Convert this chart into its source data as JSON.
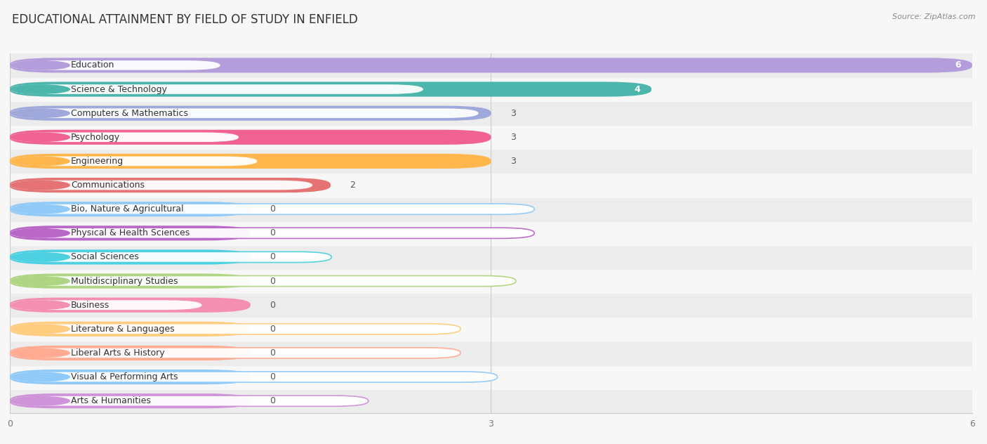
{
  "title": "EDUCATIONAL ATTAINMENT BY FIELD OF STUDY IN ENFIELD",
  "source": "Source: ZipAtlas.com",
  "categories": [
    "Education",
    "Science & Technology",
    "Computers & Mathematics",
    "Psychology",
    "Engineering",
    "Communications",
    "Bio, Nature & Agricultural",
    "Physical & Health Sciences",
    "Social Sciences",
    "Multidisciplinary Studies",
    "Business",
    "Literature & Languages",
    "Liberal Arts & History",
    "Visual & Performing Arts",
    "Arts & Humanities"
  ],
  "values": [
    6,
    4,
    3,
    3,
    3,
    2,
    0,
    0,
    0,
    0,
    0,
    0,
    0,
    0,
    0
  ],
  "bar_colors": [
    "#b39ddb",
    "#4db6ac",
    "#9fa8da",
    "#f06292",
    "#ffb74d",
    "#e57373",
    "#90caf9",
    "#ba68c8",
    "#4dd0e1",
    "#aed581",
    "#f48fb1",
    "#ffcc80",
    "#ffab91",
    "#90caf9",
    "#ce93d8"
  ],
  "xlim": [
    0,
    6
  ],
  "xticks": [
    0,
    3,
    6
  ],
  "background_color": "#f7f7f7",
  "title_fontsize": 12,
  "value_fontsize": 9,
  "label_fontsize": 9,
  "zero_bar_width": 1.5
}
